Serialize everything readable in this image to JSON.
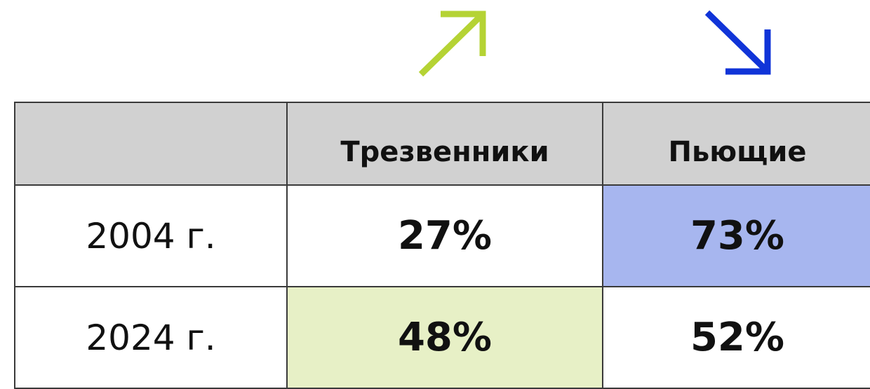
{
  "table": {
    "columns": [
      "Трезвенники",
      "Пьющие"
    ],
    "rows": [
      {
        "label": "2004 г.",
        "cells": [
          "27%",
          "73%"
        ]
      },
      {
        "label": "2024 г.",
        "cells": [
          "48%",
          "52%"
        ]
      }
    ]
  }
}
